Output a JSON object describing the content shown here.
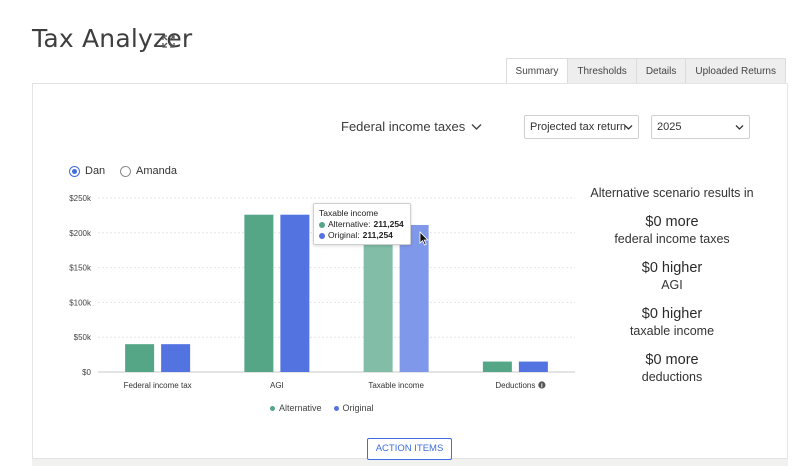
{
  "app": {
    "title": "Tax Analyzer"
  },
  "tabs": [
    {
      "label": "Summary",
      "active": true
    },
    {
      "label": "Thresholds",
      "active": false
    },
    {
      "label": "Details",
      "active": false
    },
    {
      "label": "Uploaded Returns",
      "active": false
    }
  ],
  "controls": {
    "metric_dropdown": "Federal income taxes",
    "return_select": "Projected tax return",
    "year_select": "2025"
  },
  "people": [
    {
      "label": "Dan",
      "selected": true
    },
    {
      "label": "Amanda",
      "selected": false
    }
  ],
  "colors": {
    "alternative": "#55a687",
    "original": "#5374e0",
    "alternative_hover": "#82bea7",
    "original_hover": "#8098ea",
    "accent": "#3f6ce0"
  },
  "chart_data": {
    "type": "bar",
    "categories": [
      "Federal income tax",
      "AGI",
      "Taxable income",
      "Deductions"
    ],
    "series": [
      {
        "name": "Alternative",
        "values": [
          40000,
          226000,
          211254,
          15000
        ]
      },
      {
        "name": "Original",
        "values": [
          40000,
          226000,
          211254,
          15000
        ]
      }
    ],
    "ylim": [
      0,
      250000
    ],
    "yticks": [
      0,
      50000,
      100000,
      150000,
      200000,
      250000
    ],
    "ytick_labels": [
      "$0",
      "$50k",
      "$100k",
      "$150k",
      "$200k",
      "$250k"
    ],
    "highlighted_category": "Taxable income",
    "info_icon_on": "Deductions",
    "grid": true,
    "legend": "bottom"
  },
  "tooltip": {
    "title": "Taxable income",
    "rows": [
      {
        "label": "Alternative:",
        "value": "211,254"
      },
      {
        "label": "Original:",
        "value": "211,254"
      }
    ]
  },
  "results": {
    "heading": "Alternative scenario results in",
    "items": [
      {
        "value": "$0 more",
        "label": "federal income taxes"
      },
      {
        "value": "$0 higher",
        "label": "AGI"
      },
      {
        "value": "$0 higher",
        "label": "taxable income"
      },
      {
        "value": "$0 more",
        "label": "deductions"
      }
    ]
  },
  "action_button": "ACTION ITEMS"
}
